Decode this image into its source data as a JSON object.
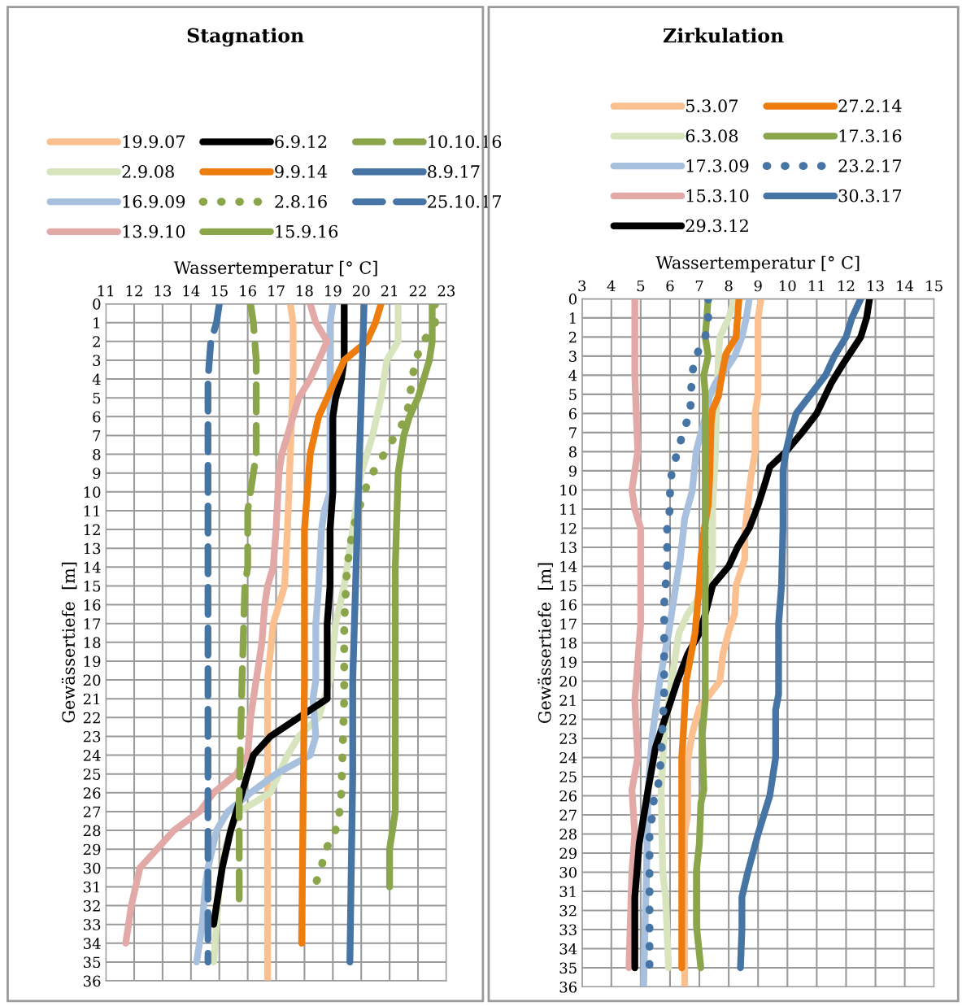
{
  "chart_data": [
    {
      "type": "line",
      "title": "Stagnation",
      "xlabel": "Wassertemperatur [° C]",
      "ylabel": "Gewässertiefe  [m]",
      "xlim": [
        11,
        23
      ],
      "xticks": [
        11,
        12,
        13,
        14,
        15,
        16,
        17,
        18,
        19,
        20,
        21,
        22,
        23
      ],
      "ylim": [
        36,
        0
      ],
      "yticks": [
        0,
        1,
        2,
        3,
        4,
        5,
        6,
        7,
        8,
        9,
        10,
        11,
        12,
        13,
        14,
        15,
        16,
        17,
        18,
        19,
        20,
        21,
        22,
        23,
        24,
        25,
        26,
        27,
        28,
        29,
        30,
        31,
        32,
        33,
        34,
        35,
        36
      ],
      "grid": true,
      "legend": "top",
      "marker": "none",
      "series": [
        {
          "name": "19.9.07",
          "color": "#fac090",
          "line_style": "solid",
          "x": [
            17.5,
            17.6,
            17.6,
            17.5,
            17.4,
            17.3,
            16.9,
            16.7,
            16.7,
            16.7,
            16.7
          ],
          "values": [
            0,
            1,
            4,
            8,
            12,
            15,
            17,
            20,
            25,
            30,
            36
          ]
        },
        {
          "name": "2.9.08",
          "color": "#d7e4bd",
          "line_style": "solid",
          "x": [
            21.3,
            21.3,
            21.3,
            20.9,
            20.7,
            20.4,
            20.0,
            19.8,
            19.4,
            19.1,
            18.9,
            18.5,
            17.8,
            17.4,
            16.8,
            15.7,
            15.4,
            15.2,
            15.0,
            14.9,
            14.8
          ],
          "values": [
            0,
            1,
            2,
            3,
            5,
            7,
            9,
            11,
            15,
            17,
            20,
            22,
            23,
            24,
            26,
            27,
            28,
            29,
            31,
            33,
            35
          ]
        },
        {
          "name": "16.9.09",
          "color": "#a7c0de",
          "line_style": "solid",
          "x": [
            19.0,
            18.9,
            18.9,
            18.9,
            18.7,
            18.6,
            18.5,
            18.4,
            18.4,
            18.3,
            18.4,
            18.2,
            17.0,
            16.1,
            15.3,
            14.9,
            14.6,
            14.5,
            14.4,
            14.2
          ],
          "values": [
            0,
            1,
            5,
            10,
            11,
            12,
            15,
            17,
            20,
            21,
            23,
            24,
            25,
            26,
            27,
            28,
            30,
            31,
            33,
            35
          ]
        },
        {
          "name": "13.9.10",
          "color": "#e2a9a7",
          "line_style": "solid",
          "x": [
            18.2,
            18.4,
            18.8,
            18.5,
            18.2,
            17.8,
            17.6,
            17.4,
            17.2,
            17.1,
            17.0,
            16.9,
            16.7,
            16.6,
            16.5,
            16.3,
            16.2,
            16.1,
            16.0,
            15.6,
            14.8,
            14.3,
            13.4,
            12.8,
            12.2,
            11.9,
            11.7
          ],
          "values": [
            0,
            1,
            2,
            3,
            4,
            5,
            6,
            7,
            8,
            9,
            12,
            14,
            15,
            16,
            18,
            20,
            21,
            22,
            24,
            25,
            26,
            27,
            28,
            29,
            30,
            32,
            34
          ]
        },
        {
          "name": "6.9.12",
          "color": "#000000",
          "line_style": "solid",
          "x": [
            19.4,
            19.4,
            19.4,
            19.3,
            19.1,
            19.0,
            19.0,
            18.9,
            18.9,
            18.8,
            18.8,
            17.8,
            16.8,
            16.2,
            15.8,
            15.4,
            15.1,
            14.8
          ],
          "values": [
            0,
            2,
            3,
            4,
            5,
            6,
            10,
            12,
            15,
            17,
            21,
            22,
            23,
            24,
            26,
            28,
            30,
            33
          ]
        },
        {
          "name": "9.9.14",
          "color": "#ed7d0e",
          "line_style": "solid",
          "x": [
            20.7,
            20.5,
            20.2,
            19.4,
            19.1,
            18.8,
            18.5,
            18.2,
            18.0,
            18.0,
            17.9
          ],
          "values": [
            0,
            1,
            2,
            3,
            4,
            5,
            6,
            8,
            12,
            20,
            34
          ]
        },
        {
          "name": "2.8.16",
          "color": "#8aa54a",
          "line_style": "dotted",
          "x": [
            22.6,
            22.6,
            22.2,
            21.9,
            21.8,
            21.7,
            21.6,
            21.2,
            20.8,
            20.4,
            20.1,
            19.9,
            19.7,
            19.5,
            19.4,
            19.4,
            19.3,
            19.2,
            19.0,
            18.7,
            18.6,
            18.4
          ],
          "values": [
            0,
            1,
            2,
            3,
            4,
            5,
            6,
            7,
            8,
            9,
            10,
            11,
            12,
            14,
            17,
            21,
            26,
            27.5,
            28.4,
            29.1,
            30,
            30.8
          ]
        },
        {
          "name": "15.9.16",
          "color": "#8aa54a",
          "line_style": "solid",
          "x": [
            22.5,
            22.5,
            22.4,
            22.2,
            22.0,
            21.7,
            21.5,
            21.3,
            21.2,
            21.2,
            21.1,
            21.0,
            21.0
          ],
          "values": [
            0,
            2,
            3,
            4,
            5,
            6,
            7,
            9,
            14,
            27,
            28,
            29,
            31
          ]
        },
        {
          "name": "10.10.16",
          "color": "#8aa54a",
          "line_style": "dashed",
          "x": [
            16.1,
            16.2,
            16.3,
            16.3,
            16.2,
            16.0,
            16.0,
            15.9,
            15.8,
            15.7,
            15.7
          ],
          "values": [
            0,
            1,
            3,
            8,
            9,
            11,
            14,
            15,
            20,
            26,
            32
          ]
        },
        {
          "name": "8.9.17",
          "color": "#4674a4",
          "line_style": "solid",
          "x": [
            20.1,
            20.0,
            19.9,
            19.8,
            19.7,
            19.7,
            19.6
          ],
          "values": [
            0,
            5,
            10,
            15,
            20,
            25,
            35
          ]
        },
        {
          "name": "25.10.17",
          "color": "#4674a4",
          "line_style": "dashed",
          "x": [
            15.0,
            14.9,
            14.7,
            14.6,
            14.6
          ],
          "values": [
            0,
            1,
            2,
            4,
            35
          ]
        }
      ]
    },
    {
      "type": "line",
      "title": "Zirkulation",
      "xlabel": "Wassertemperatur [° C]",
      "ylabel": "Gewässertiefe  [m]",
      "xlim": [
        3,
        15
      ],
      "xticks": [
        3,
        4,
        5,
        6,
        7,
        8,
        9,
        10,
        11,
        12,
        13,
        14,
        15
      ],
      "ylim": [
        36,
        0
      ],
      "yticks": [
        0,
        1,
        2,
        3,
        4,
        5,
        6,
        7,
        8,
        9,
        10,
        11,
        12,
        13,
        14,
        15,
        16,
        17,
        18,
        19,
        20,
        21,
        22,
        23,
        24,
        25,
        26,
        27,
        28,
        29,
        30,
        31,
        32,
        33,
        34,
        35,
        36
      ],
      "grid": true,
      "legend": "top",
      "marker": "none",
      "series": [
        {
          "name": "5.3.07",
          "color": "#fac090",
          "line_style": "solid",
          "x": [
            9.1,
            9.0,
            9.0,
            8.9,
            8.9,
            8.75,
            8.65,
            8.55,
            8.55,
            8.25,
            8.2,
            8.0,
            7.8,
            7.7,
            7.35,
            7.0,
            6.75,
            6.6,
            6.6,
            6.5,
            6.5
          ],
          "values": [
            0,
            1,
            5,
            6,
            8,
            9.4,
            10.8,
            12.2,
            13.6,
            15,
            16.5,
            17.4,
            18.6,
            20,
            20.7,
            21.4,
            22.8,
            24.2,
            27,
            28,
            36
          ]
        },
        {
          "name": "6.3.08",
          "color": "#d7e4bd",
          "line_style": "solid",
          "x": [
            8.2,
            8.0,
            7.7,
            7.65,
            7.6,
            7.55,
            7.45,
            7.45,
            7.25,
            6.6,
            6.3,
            6.05,
            5.8,
            5.7,
            5.75,
            5.85,
            5.95
          ],
          "values": [
            0,
            1,
            2,
            3,
            5,
            8,
            11,
            14,
            15,
            16.5,
            17.5,
            20,
            22.8,
            25.7,
            30,
            31.3,
            35
          ]
        },
        {
          "name": "17.3.09",
          "color": "#a7c0de",
          "line_style": "solid",
          "x": [
            8.7,
            8.6,
            8.45,
            8.2,
            7.9,
            7.55,
            7.35,
            7.15,
            6.9,
            6.8,
            6.75,
            6.5,
            6.35,
            6.2,
            6.05,
            5.95,
            5.65,
            5.4,
            5.25,
            5.2,
            5.15,
            5.1
          ],
          "values": [
            0,
            1,
            2,
            3,
            3.7,
            4.4,
            5.1,
            6.5,
            7.9,
            9.4,
            10.1,
            11.5,
            13.6,
            15,
            16.5,
            17.5,
            20,
            22.8,
            25.7,
            30,
            32.8,
            36
          ]
        },
        {
          "name": "15.3.10",
          "color": "#e2a9a7",
          "line_style": "solid",
          "x": [
            4.8,
            4.8,
            4.9,
            4.8,
            4.7,
            4.8,
            5.0,
            5.0,
            4.8,
            4.9,
            4.7,
            4.8,
            4.7,
            4.6
          ],
          "values": [
            0,
            4,
            8,
            9,
            10,
            11,
            12,
            17,
            21,
            24,
            25.7,
            28,
            30,
            35
          ]
        },
        {
          "name": "29.3.12",
          "color": "#000000",
          "line_style": "solid",
          "x": [
            12.8,
            12.7,
            12.5,
            12.2,
            11.9,
            11.5,
            11.0,
            10.5,
            9.95,
            9.4,
            9.25,
            9.0,
            8.7,
            8.3,
            8.0,
            7.45,
            7.2,
            7.0,
            6.6,
            6.25,
            5.95,
            5.5,
            5.25,
            4.95,
            4.8,
            4.8
          ],
          "values": [
            0,
            1,
            2,
            2.7,
            3.4,
            4.4,
            6,
            7,
            8,
            8.8,
            9.6,
            10.8,
            12,
            13,
            14,
            15,
            16.5,
            17.5,
            18.6,
            20,
            21.4,
            23.5,
            25.7,
            28.5,
            31.3,
            35
          ]
        },
        {
          "name": "27.2.14",
          "color": "#ed7d0e",
          "line_style": "solid",
          "x": [
            8.35,
            8.3,
            8.25,
            7.9,
            7.8,
            7.65,
            7.45,
            7.4,
            7.35,
            7.3,
            7.15,
            7.05,
            7.0,
            6.85,
            6.55,
            6.45,
            6.4,
            6.4
          ],
          "values": [
            0,
            1,
            2,
            2.9,
            3.7,
            5.1,
            5.8,
            6.5,
            9.4,
            10.8,
            12.2,
            13.6,
            15,
            17.5,
            20,
            22.8,
            24,
            35
          ]
        },
        {
          "name": "17.3.16",
          "color": "#8aa54a",
          "line_style": "solid",
          "x": [
            7.3,
            7.2,
            7.3,
            7.15,
            7.2,
            7.2,
            7.1,
            7.15,
            7.05,
            7.0,
            6.9,
            6.9,
            7.05
          ],
          "values": [
            0,
            2,
            3,
            4,
            5,
            21,
            22.8,
            25.7,
            26.4,
            28.5,
            29.9,
            32.8,
            35
          ]
        },
        {
          "name": "23.2.17",
          "color": "#4674a4",
          "line_style": "dotted",
          "x": [
            7.3,
            7.3,
            7.2,
            7.0,
            6.8,
            6.75,
            6.7,
            6.7,
            6.5,
            6.35,
            6.2,
            6.05,
            6.0,
            6.0,
            5.9,
            5.9,
            5.8,
            5.8,
            5.8,
            5.75,
            5.7,
            5.6,
            5.45,
            5.4,
            5.3,
            5.3
          ],
          "values": [
            0,
            1,
            2,
            2.6,
            3.4,
            4.2,
            5.1,
            6,
            6.7,
            7.5,
            8.3,
            9.2,
            10,
            11,
            11.7,
            14,
            16,
            17.6,
            21,
            22,
            24,
            25.4,
            26.2,
            27,
            27.9,
            35
          ]
        },
        {
          "name": "30.3.17",
          "color": "#4674a4",
          "line_style": "solid",
          "x": [
            12.5,
            12.2,
            12.0,
            11.6,
            11.3,
            10.8,
            10.3,
            10.1,
            9.95,
            9.85,
            9.85,
            9.8,
            9.7,
            9.7,
            9.6,
            9.6,
            9.4,
            9.0,
            8.65,
            8.45,
            8.45,
            8.4
          ],
          "values": [
            0,
            1,
            2,
            3,
            4,
            5,
            6,
            7,
            8,
            9,
            12,
            15,
            17,
            20.7,
            21.5,
            24,
            26,
            28,
            30,
            31.3,
            33,
            35
          ]
        }
      ]
    }
  ]
}
